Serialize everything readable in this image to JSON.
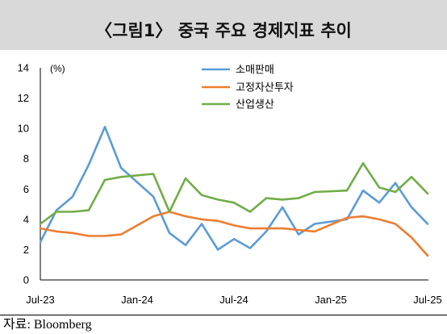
{
  "source": "자료: Bloomberg",
  "chart_data": {
    "type": "line",
    "title": "〈그림1〉 중국 주요 경제지표 추이",
    "ylabel": "(%)",
    "ylim": [
      0,
      14
    ],
    "yticks": [
      0,
      2,
      4,
      6,
      8,
      10,
      12,
      14
    ],
    "x": [
      "Jul-23",
      "Aug-23",
      "Sep-23",
      "Oct-23",
      "Nov-23",
      "Dec-23",
      "Jan-24",
      "Feb-24",
      "Mar-24",
      "Apr-24",
      "May-24",
      "Jun-24",
      "Jul-24",
      "Aug-24",
      "Sep-24",
      "Oct-24",
      "Nov-24",
      "Dec-24",
      "Jan-25",
      "Feb-25",
      "Mar-25",
      "Apr-25",
      "May-25",
      "Jun-25",
      "Jul-25"
    ],
    "xticks": [
      "Jul-23",
      "Jan-24",
      "Jul-24",
      "Jan-25",
      "Jul-25"
    ],
    "grid": false,
    "legend": "top-center",
    "series": [
      {
        "name": "소매판매",
        "color": "#5B9BD5",
        "values": [
          2.5,
          4.6,
          5.5,
          7.6,
          10.1,
          7.4,
          null,
          5.5,
          3.1,
          2.3,
          3.7,
          2.0,
          2.7,
          2.1,
          3.2,
          4.8,
          3.0,
          3.7,
          null,
          4.0,
          5.9,
          5.1,
          6.4,
          4.8,
          3.7
        ]
      },
      {
        "name": "고정자산투자",
        "color": "#ED7D31",
        "values": [
          3.4,
          3.2,
          3.1,
          2.9,
          2.9,
          3.0,
          null,
          4.2,
          4.5,
          4.2,
          4.0,
          3.9,
          3.6,
          3.4,
          3.4,
          3.4,
          3.3,
          3.2,
          null,
          4.1,
          4.2,
          4.0,
          3.7,
          2.8,
          1.6
        ]
      },
      {
        "name": "산업생산",
        "color": "#70AD47",
        "values": [
          3.7,
          4.5,
          4.5,
          4.6,
          6.6,
          6.8,
          null,
          7.0,
          4.5,
          6.7,
          5.6,
          5.3,
          5.1,
          4.5,
          5.4,
          5.3,
          5.4,
          5.8,
          null,
          5.9,
          7.7,
          6.1,
          5.8,
          6.8,
          5.7
        ]
      }
    ]
  }
}
